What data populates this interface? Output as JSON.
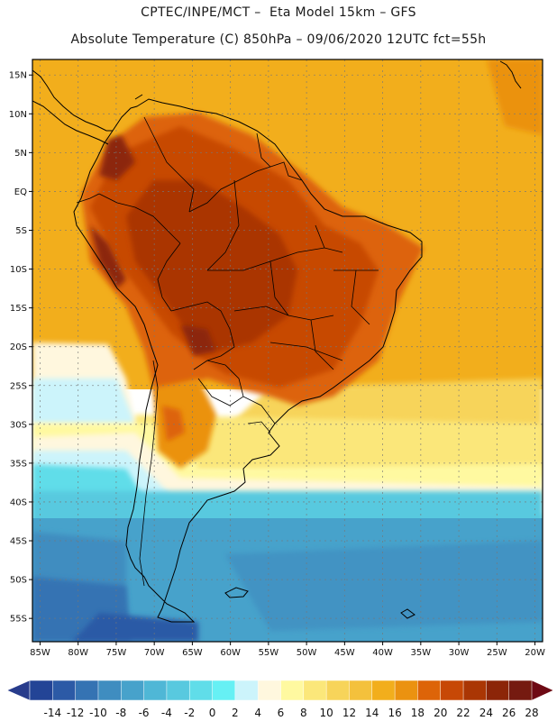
{
  "title": {
    "line1": "CPTEC/INPE/MCT –  Eta Model 15km – GFS",
    "line2": "Absolute Temperature (C) 850hPa – 09/06/2020 12UTC fct=55h"
  },
  "map": {
    "lon_range": [
      -86,
      -19
    ],
    "lat_range": [
      -58,
      17
    ],
    "lon_ticks": [
      {
        "value": -85,
        "label": "85W"
      },
      {
        "value": -80,
        "label": "80W"
      },
      {
        "value": -75,
        "label": "75W"
      },
      {
        "value": -70,
        "label": "70W"
      },
      {
        "value": -65,
        "label": "65W"
      },
      {
        "value": -60,
        "label": "60W"
      },
      {
        "value": -55,
        "label": "55W"
      },
      {
        "value": -50,
        "label": "50W"
      },
      {
        "value": -45,
        "label": "45W"
      },
      {
        "value": -40,
        "label": "40W"
      },
      {
        "value": -35,
        "label": "35W"
      },
      {
        "value": -30,
        "label": "30W"
      },
      {
        "value": -25,
        "label": "25W"
      },
      {
        "value": -20,
        "label": "20W"
      }
    ],
    "lat_ticks": [
      {
        "value": 15,
        "label": "15N"
      },
      {
        "value": 10,
        "label": "10N"
      },
      {
        "value": 5,
        "label": "5N"
      },
      {
        "value": 0,
        "label": "EQ"
      },
      {
        "value": -5,
        "label": "5S"
      },
      {
        "value": -10,
        "label": "10S"
      },
      {
        "value": -15,
        "label": "15S"
      },
      {
        "value": -20,
        "label": "20S"
      },
      {
        "value": -25,
        "label": "25S"
      },
      {
        "value": -30,
        "label": "30S"
      },
      {
        "value": -35,
        "label": "35S"
      },
      {
        "value": -40,
        "label": "40S"
      },
      {
        "value": -45,
        "label": "45S"
      },
      {
        "value": -50,
        "label": "50S"
      },
      {
        "value": -55,
        "label": "55S"
      }
    ],
    "grid": true
  },
  "colorbar": {
    "labels": [
      "-14",
      "-12",
      "-10",
      "-8",
      "-6",
      "-4",
      "-2",
      "0",
      "2",
      "4",
      "6",
      "8",
      "10",
      "12",
      "14",
      "16",
      "18",
      "20",
      "22",
      "24",
      "26",
      "28"
    ],
    "low_extend_color": "#283c8c",
    "high_extend_color": "#6e0a14",
    "colors": [
      "#234496",
      "#2c5aa6",
      "#3573b3",
      "#3f8dc0",
      "#47a2cb",
      "#4fb7d6",
      "#58c9df",
      "#60dde9",
      "#66f0f4",
      "#ccf4fb",
      "#fff7de",
      "#fff9a0",
      "#fbe77a",
      "#f7d45a",
      "#f4c13c",
      "#f2ae1c",
      "#eb9210",
      "#dd6408",
      "#c74806",
      "#aa3604",
      "#8c2508",
      "#751a10"
    ]
  }
}
